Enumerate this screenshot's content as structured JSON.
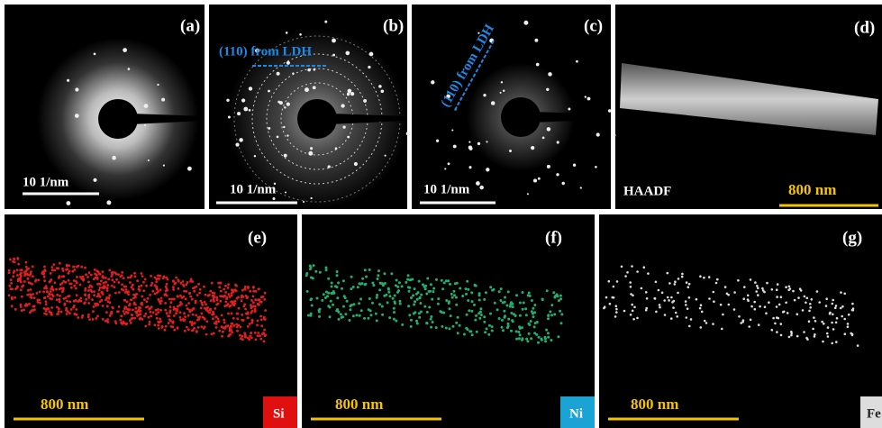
{
  "panels": [
    {
      "label": "(a)",
      "scale_bar": "10 1/nm"
    },
    {
      "label": "(b)",
      "scale_bar": "10 1/nm",
      "annotation": "(110) from LDH"
    },
    {
      "label": "(c)",
      "scale_bar": "10 1/nm",
      "annotation": "(110) from LDH"
    },
    {
      "label": "(d)",
      "scale_bar": "800 nm",
      "annotation": "HAADF"
    },
    {
      "label": "(e)",
      "scale_bar": "800 nm",
      "element": "Si"
    },
    {
      "label": "(f)",
      "scale_bar": "800 nm",
      "element": "Ni"
    },
    {
      "label": "(g)",
      "scale_bar": "800 nm",
      "element": "Fe"
    }
  ]
}
